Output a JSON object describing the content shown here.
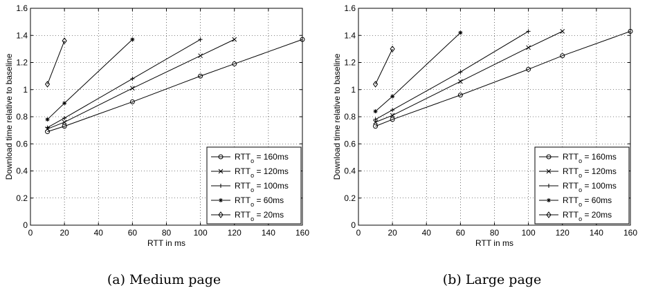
{
  "chart_data": [
    {
      "type": "line",
      "caption": "(a) Medium page",
      "xlabel": "RTT in ms",
      "ylabel": "Download time relative to baseline",
      "xlim": [
        0,
        160
      ],
      "ylim": [
        0,
        1.6
      ],
      "xticks": [
        0,
        20,
        40,
        60,
        80,
        100,
        120,
        140,
        160
      ],
      "yticks": [
        0,
        0.2,
        0.4,
        0.6,
        0.8,
        1,
        1.2,
        1.4,
        1.6
      ],
      "grid": true,
      "legend_position": "bottom-right",
      "series": [
        {
          "name_main": "RTT",
          "name_sub": "o",
          "name_tail": " = 160ms",
          "marker": "circle",
          "x": [
            10,
            20,
            60,
            100,
            120,
            160
          ],
          "y": [
            0.69,
            0.73,
            0.91,
            1.1,
            1.19,
            1.37
          ]
        },
        {
          "name_main": "RTT",
          "name_sub": "o",
          "name_tail": " = 120ms",
          "marker": "x",
          "x": [
            10,
            20,
            60,
            100,
            120
          ],
          "y": [
            0.71,
            0.76,
            1.01,
            1.25,
            1.37
          ]
        },
        {
          "name_main": "RTT",
          "name_sub": "o",
          "name_tail": " = 100ms",
          "marker": "plus",
          "x": [
            10,
            20,
            60,
            100
          ],
          "y": [
            0.72,
            0.79,
            1.08,
            1.37
          ]
        },
        {
          "name_main": "RTT",
          "name_sub": "o",
          "name_tail": " = 60ms",
          "marker": "star",
          "x": [
            10,
            20,
            60
          ],
          "y": [
            0.78,
            0.9,
            1.37
          ]
        },
        {
          "name_main": "RTT",
          "name_sub": "o",
          "name_tail": " = 20ms",
          "marker": "diamond",
          "x": [
            10,
            20
          ],
          "y": [
            1.04,
            1.36
          ]
        }
      ]
    },
    {
      "type": "line",
      "caption": "(b) Large page",
      "xlabel": "RTT in ms",
      "ylabel": "Download time relative to baseline",
      "xlim": [
        0,
        160
      ],
      "ylim": [
        0,
        1.6
      ],
      "xticks": [
        0,
        20,
        40,
        60,
        80,
        100,
        120,
        140,
        160
      ],
      "yticks": [
        0,
        0.2,
        0.4,
        0.6,
        0.8,
        1,
        1.2,
        1.4,
        1.6
      ],
      "grid": true,
      "legend_position": "bottom-right",
      "series": [
        {
          "name_main": "RTT",
          "name_sub": "o",
          "name_tail": " = 160ms",
          "marker": "circle",
          "x": [
            10,
            20,
            60,
            100,
            120,
            160
          ],
          "y": [
            0.73,
            0.78,
            0.96,
            1.15,
            1.25,
            1.43
          ]
        },
        {
          "name_main": "RTT",
          "name_sub": "o",
          "name_tail": " = 120ms",
          "marker": "x",
          "x": [
            10,
            20,
            60,
            100,
            120
          ],
          "y": [
            0.76,
            0.81,
            1.06,
            1.31,
            1.43
          ]
        },
        {
          "name_main": "RTT",
          "name_sub": "o",
          "name_tail": " = 100ms",
          "marker": "plus",
          "x": [
            10,
            20,
            60,
            100
          ],
          "y": [
            0.78,
            0.85,
            1.13,
            1.43
          ]
        },
        {
          "name_main": "RTT",
          "name_sub": "o",
          "name_tail": " = 60ms",
          "marker": "star",
          "x": [
            10,
            20,
            60
          ],
          "y": [
            0.84,
            0.95,
            1.42
          ]
        },
        {
          "name_main": "RTT",
          "name_sub": "o",
          "name_tail": " = 20ms",
          "marker": "diamond",
          "x": [
            10,
            20
          ],
          "y": [
            1.04,
            1.3
          ]
        }
      ]
    }
  ]
}
